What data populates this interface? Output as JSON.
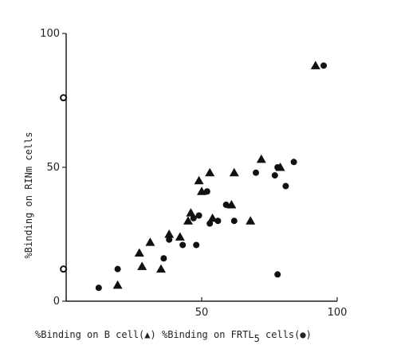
{
  "chart_data": {
    "type": "scatter",
    "title": "",
    "xlabel_part1": "%Binding on B cell(",
    "xlabel_part2": ") %Binding on FRTL",
    "xlabel_subscript": "5",
    "xlabel_part3": " cells(",
    "xlabel_part4": ")",
    "ylabel": "%Binding on RINm cells",
    "xlim": [
      0,
      100
    ],
    "ylim": [
      0,
      100
    ],
    "x_ticks": [
      {
        "value": 0,
        "label": ""
      },
      {
        "value": 50,
        "label": "50"
      },
      {
        "value": 100,
        "label": "100"
      }
    ],
    "y_ticks": [
      {
        "value": 0,
        "label": "0"
      },
      {
        "value": 50,
        "label": "50"
      },
      {
        "value": 100,
        "label": "100"
      }
    ],
    "grid": false,
    "series": [
      {
        "marker": "triangle",
        "color": "#111111",
        "points": [
          [
            19,
            6
          ],
          [
            27,
            18
          ],
          [
            28,
            13
          ],
          [
            31,
            22
          ],
          [
            35,
            12
          ],
          [
            38,
            25
          ],
          [
            42,
            24
          ],
          [
            45,
            30
          ],
          [
            46,
            33
          ],
          [
            49,
            45
          ],
          [
            50,
            41
          ],
          [
            53,
            48
          ],
          [
            54,
            31
          ],
          [
            61,
            36
          ],
          [
            62,
            48
          ],
          [
            68,
            30
          ],
          [
            72,
            53
          ],
          [
            79,
            50
          ],
          [
            92,
            88
          ]
        ]
      },
      {
        "marker": "circle",
        "color": "#111111",
        "points": [
          [
            12,
            5
          ],
          [
            19,
            12
          ],
          [
            36,
            16
          ],
          [
            38,
            23
          ],
          [
            43,
            21
          ],
          [
            47,
            31
          ],
          [
            48,
            21
          ],
          [
            49,
            32
          ],
          [
            52,
            41
          ],
          [
            53,
            29
          ],
          [
            56,
            30
          ],
          [
            59,
            36
          ],
          [
            62,
            30
          ],
          [
            70,
            48
          ],
          [
            77,
            47
          ],
          [
            78,
            50
          ],
          [
            78,
            10
          ],
          [
            81,
            43
          ],
          [
            84,
            52
          ],
          [
            95,
            88
          ]
        ]
      },
      {
        "marker": "open-circle",
        "color": "#111111",
        "points": [
          [
            -1,
            76
          ],
          [
            -1,
            12
          ]
        ]
      }
    ]
  }
}
